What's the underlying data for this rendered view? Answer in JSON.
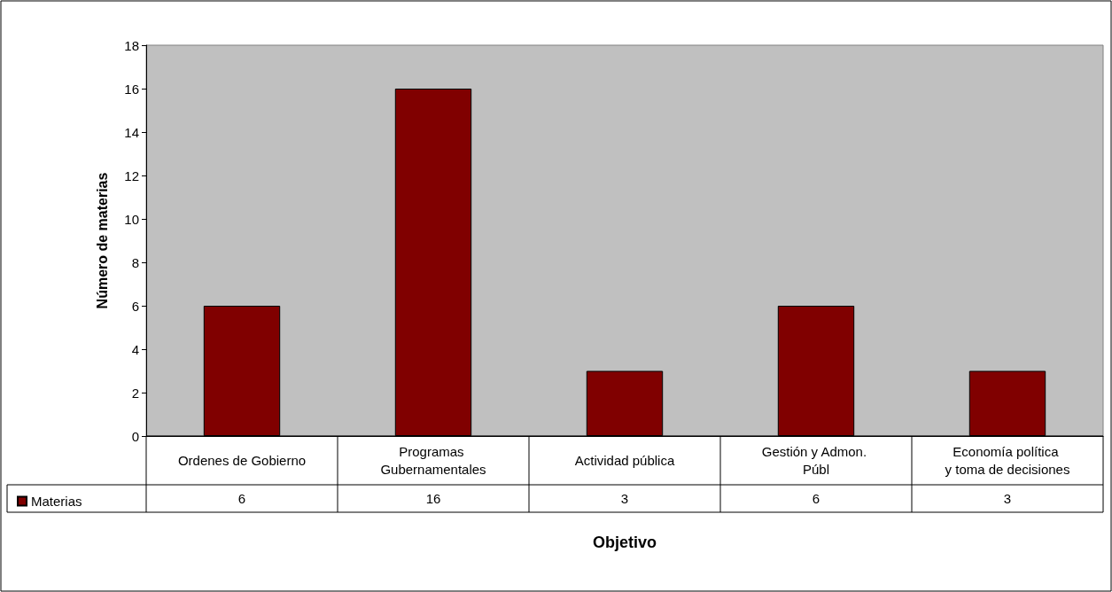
{
  "chart_data": {
    "type": "bar",
    "xlabel": "Objetivo",
    "ylabel": "Número de materias",
    "categories": [
      "Ordenes de Gobierno",
      "Programas Gubernamentales",
      "Actividad pública",
      "Gestión y Admon. Públ",
      "Economía política y toma de decisiones"
    ],
    "series": [
      {
        "name": "Materias",
        "color": "#800000",
        "values": [
          6,
          16,
          3,
          6,
          3
        ]
      }
    ],
    "ylim": [
      0,
      18
    ],
    "yticks": [
      0,
      2,
      4,
      6,
      8,
      10,
      12,
      14,
      16,
      18
    ],
    "grid": false,
    "legend": "bottom left",
    "data_labels": true
  }
}
